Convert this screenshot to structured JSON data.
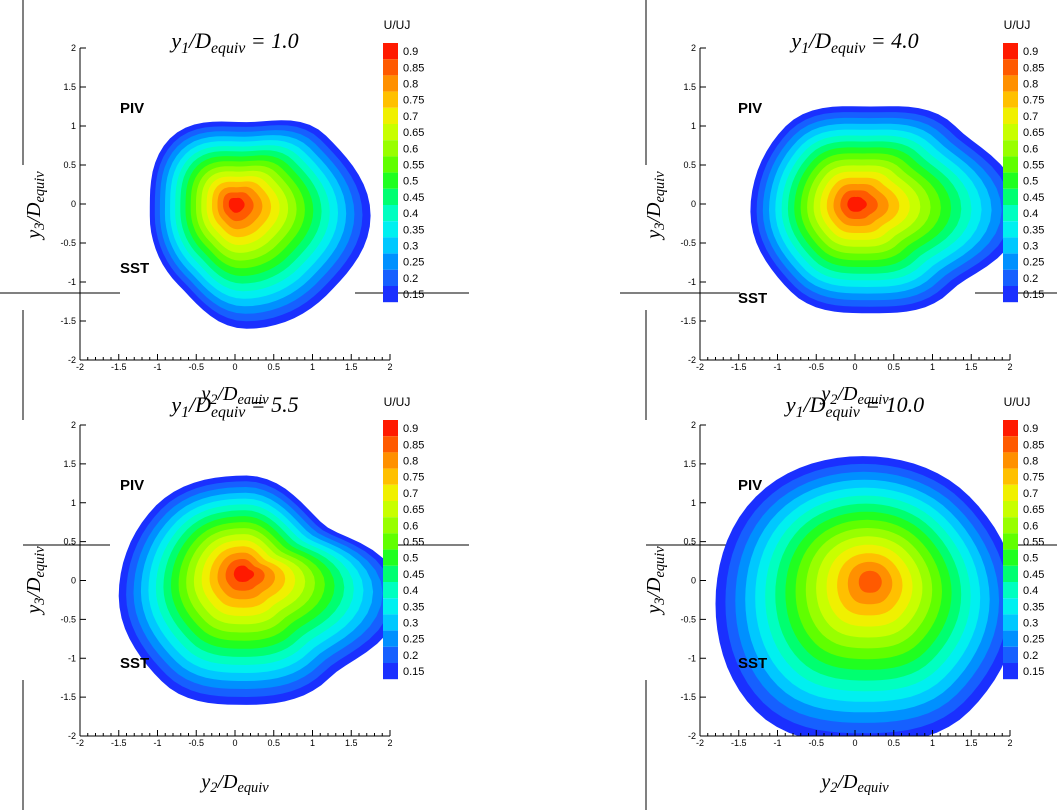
{
  "chart_data": [
    {
      "type": "contour",
      "title": [
        "y",
        "1",
        "/D",
        "equiv",
        " = 1.0"
      ],
      "x_label": [
        "y",
        "2",
        "/D",
        "eauiv"
      ],
      "y_label": [
        "y",
        "3",
        "/D",
        "equiv"
      ],
      "annotations": [
        "PIV",
        "SST"
      ],
      "colorbar_title": "U/UJ",
      "levels": [
        0.9,
        0.85,
        0.8,
        0.75,
        0.7,
        0.65,
        0.6,
        0.55,
        0.5,
        0.45,
        0.4,
        0.35,
        0.3,
        0.25,
        0.2,
        0.15
      ],
      "colors": [
        "#ff1a00",
        "#ff5a00",
        "#ff9000",
        "#ffc000",
        "#f0f000",
        "#c8ff00",
        "#98ff00",
        "#60ff00",
        "#20ff20",
        "#00ff70",
        "#00ffc0",
        "#00f0f0",
        "#00c8ff",
        "#0090ff",
        "#1660ff",
        "#1a30ff"
      ],
      "xlim": [
        -2,
        2
      ],
      "ylim": [
        -2,
        2
      ],
      "xticks": [
        -2,
        -1.5,
        -1,
        -0.5,
        0,
        0.5,
        1,
        1.5,
        2
      ],
      "yticks": [
        -2,
        -1.5,
        -1,
        -0.5,
        0,
        0.5,
        1,
        1.5,
        2
      ]
    },
    {
      "type": "contour",
      "title": [
        "y",
        "1",
        "/D",
        "equiv",
        " = 4.0"
      ],
      "x_label": [
        "y",
        "2",
        "/D",
        "equiv"
      ],
      "y_label": [
        "y",
        "3",
        "/D",
        "equiv"
      ],
      "annotations": [
        "PIV",
        "SST"
      ],
      "colorbar_title": "U/UJ",
      "levels": [
        0.9,
        0.85,
        0.8,
        0.75,
        0.7,
        0.65,
        0.6,
        0.55,
        0.5,
        0.45,
        0.4,
        0.35,
        0.3,
        0.25,
        0.2,
        0.15
      ],
      "colors": [
        "#ff1a00",
        "#ff5a00",
        "#ff9000",
        "#ffc000",
        "#f0f000",
        "#c8ff00",
        "#98ff00",
        "#60ff00",
        "#20ff20",
        "#00ff70",
        "#00ffc0",
        "#00f0f0",
        "#00c8ff",
        "#0090ff",
        "#1660ff",
        "#1a30ff"
      ],
      "xlim": [
        -2,
        2
      ],
      "ylim": [
        -2,
        2
      ],
      "xticks": [
        -2,
        -1.5,
        -1,
        -0.5,
        0,
        0.5,
        1,
        1.5,
        2
      ],
      "yticks": [
        -2,
        -1.5,
        -1,
        -0.5,
        0,
        0.5,
        1,
        1.5,
        2
      ]
    },
    {
      "type": "contour",
      "title": [
        "y",
        "1",
        "/D",
        "equiv",
        " = 5.5"
      ],
      "x_label": [
        "y",
        "2",
        "/D",
        "equiv"
      ],
      "y_label": [
        "y",
        "3",
        "/D",
        "equiv"
      ],
      "annotations": [
        "PIV",
        "SST"
      ],
      "colorbar_title": "U/UJ",
      "levels": [
        0.9,
        0.85,
        0.8,
        0.75,
        0.7,
        0.65,
        0.6,
        0.55,
        0.5,
        0.45,
        0.4,
        0.35,
        0.3,
        0.25,
        0.2,
        0.15
      ],
      "colors": [
        "#ff1a00",
        "#ff5a00",
        "#ff9000",
        "#ffc000",
        "#f0f000",
        "#c8ff00",
        "#98ff00",
        "#60ff00",
        "#20ff20",
        "#00ff70",
        "#00ffc0",
        "#00f0f0",
        "#00c8ff",
        "#0090ff",
        "#1660ff",
        "#1a30ff"
      ],
      "xlim": [
        -2,
        2
      ],
      "ylim": [
        -2,
        2
      ],
      "xticks": [
        -2,
        -1.5,
        -1,
        -0.5,
        0,
        0.5,
        1,
        1.5,
        2
      ],
      "yticks": [
        -2,
        -1.5,
        -1,
        -0.5,
        0,
        0.5,
        1,
        1.5,
        2
      ]
    },
    {
      "type": "contour",
      "title": [
        "y",
        "1",
        "/D",
        "equiv",
        " = 10.0"
      ],
      "x_label": [
        "y",
        "2",
        "/D",
        "equiv"
      ],
      "y_label": [
        "y",
        "3",
        "/D",
        "equiv"
      ],
      "annotations": [
        "PIV",
        "SST"
      ],
      "colorbar_title": "U/UJ",
      "levels": [
        0.9,
        0.85,
        0.8,
        0.75,
        0.7,
        0.65,
        0.6,
        0.55,
        0.5,
        0.45,
        0.4,
        0.35,
        0.3,
        0.25,
        0.2,
        0.15
      ],
      "colors": [
        "#ff1a00",
        "#ff5a00",
        "#ff9000",
        "#ffc000",
        "#f0f000",
        "#c8ff00",
        "#98ff00",
        "#60ff00",
        "#20ff20",
        "#00ff70",
        "#00ffc0",
        "#00f0f0",
        "#00c8ff",
        "#0090ff",
        "#1660ff",
        "#1a30ff"
      ],
      "xlim": [
        -2,
        2
      ],
      "ylim": [
        -2,
        2
      ],
      "xticks": [
        -2,
        -1.5,
        -1,
        -0.5,
        0,
        0.5,
        1,
        1.5,
        2
      ],
      "yticks": [
        -2,
        -1.5,
        -1,
        -0.5,
        0,
        0.5,
        1,
        1.5,
        2
      ]
    }
  ]
}
